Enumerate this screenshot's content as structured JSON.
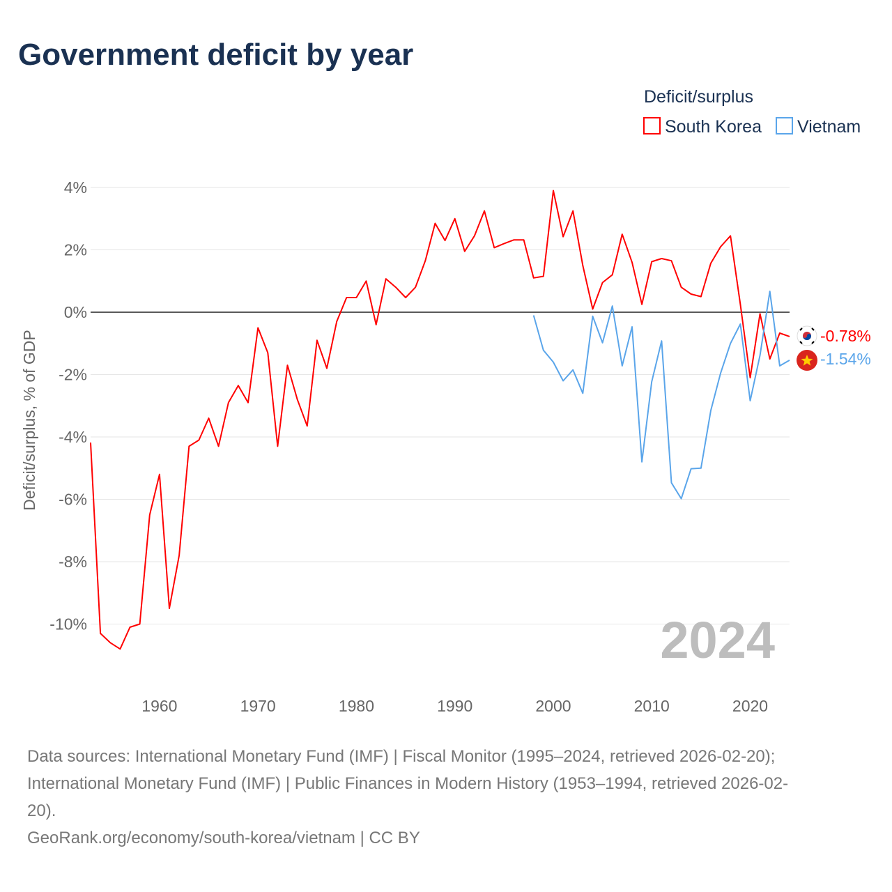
{
  "title": "Government deficit by year",
  "legend": {
    "title": "Deficit/surplus",
    "items": [
      "South Korea",
      "Vietnam"
    ]
  },
  "year_display": "2024",
  "end_labels": {
    "south_korea": "-0.78%",
    "vietnam": "-1.54%"
  },
  "footer": {
    "line1": "Data sources: International Monetary Fund (IMF) | Fiscal Monitor (1995–2024, retrieved 2026-02-20);",
    "line2": "International Monetary Fund (IMF) | Public Finances in Modern History (1953–1994, retrieved 2026-02-",
    "line3": "20).",
    "line4": "GeoRank.org/economy/south-korea/vietnam | CC BY"
  },
  "chart_data": {
    "type": "line",
    "title": "Government deficit by year",
    "xlabel": "",
    "ylabel": "Deficit/surplus, % of GDP",
    "xlim": [
      1953,
      2024
    ],
    "ylim": [
      -12,
      4.5
    ],
    "xticks": [
      1960,
      1970,
      1980,
      1990,
      2000,
      2010,
      2020
    ],
    "xtick_labels": [
      "1960",
      "1970",
      "1980",
      "1990",
      "2000",
      "2010",
      "2020"
    ],
    "yticks": [
      4,
      2,
      0,
      -2,
      -4,
      -6,
      -8,
      -10
    ],
    "ytick_labels": [
      "4%",
      "2%",
      "0%",
      "-2%",
      "-4%",
      "-6%",
      "-8%",
      "-10%"
    ],
    "grid": true,
    "legend_position": "top-right",
    "colors": {
      "south_korea": "#ff0000",
      "vietnam": "#5aa5ea"
    },
    "series": [
      {
        "name": "South Korea",
        "start_year": 1953,
        "values": [
          -4.18,
          -10.3,
          -10.6,
          -10.8,
          -10.1,
          -10.0,
          -6.5,
          -5.2,
          -9.5,
          -7.8,
          -4.3,
          -4.1,
          -3.4,
          -4.3,
          -2.9,
          -2.35,
          -2.9,
          -0.5,
          -1.3,
          -4.3,
          -1.7,
          -2.8,
          -3.65,
          -0.9,
          -1.8,
          -0.3,
          0.47,
          0.47,
          1.0,
          -0.4,
          1.07,
          0.8,
          0.47,
          0.8,
          1.65,
          2.85,
          2.3,
          3.0,
          1.95,
          2.45,
          3.25,
          2.07,
          2.2,
          2.32,
          2.32,
          1.1,
          1.15,
          3.9,
          2.42,
          3.25,
          1.5,
          0.1,
          0.95,
          1.2,
          2.5,
          1.6,
          0.25,
          1.62,
          1.72,
          1.65,
          0.8,
          0.58,
          0.5,
          1.57,
          2.1,
          2.45,
          0.25,
          -2.1,
          -0.05,
          -1.5,
          -0.67,
          -0.78
        ]
      },
      {
        "name": "Vietnam",
        "start_year": 1998,
        "values": [
          -0.1,
          -1.22,
          -1.6,
          -2.2,
          -1.85,
          -2.6,
          -0.13,
          -0.98,
          0.2,
          -1.72,
          -0.47,
          -4.8,
          -2.23,
          -0.92,
          -5.47,
          -5.98,
          -5.02,
          -5.0,
          -3.15,
          -1.95,
          -1.0,
          -0.38,
          -2.84,
          -1.38,
          0.67,
          -1.72,
          -1.54
        ]
      }
    ]
  }
}
